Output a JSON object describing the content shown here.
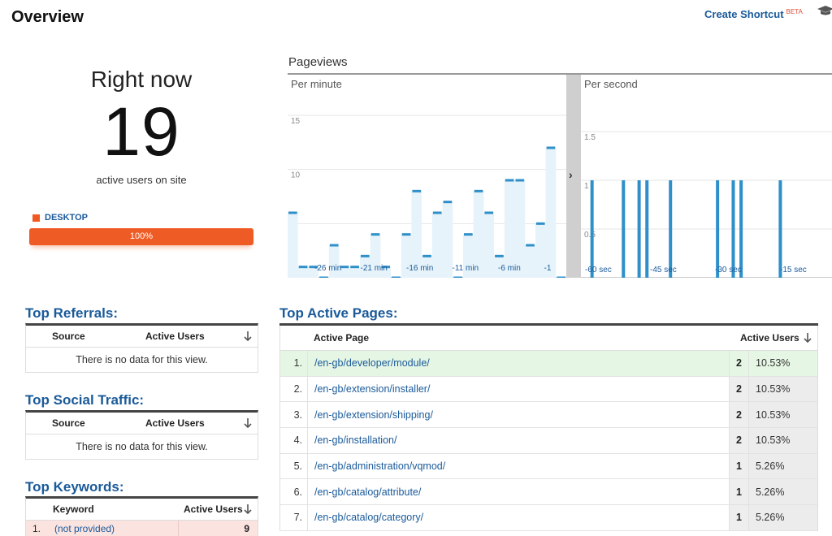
{
  "header": {
    "title": "Overview",
    "shortcut_label": "Create Shortcut",
    "shortcut_badge": "BETA"
  },
  "right_now": {
    "label": "Right now",
    "count": "19",
    "subtitle": "active users on site"
  },
  "device": {
    "label": "DESKTOP",
    "percent_label": "100%",
    "percent": 100,
    "color": "#f05a22"
  },
  "pageviews": {
    "title": "Pageviews",
    "per_minute_label": "Per minute",
    "per_second_label": "Per second",
    "minute_y_ticks": [
      "15",
      "10",
      "5"
    ],
    "minute_x_ticks": [
      "-26 min",
      "-21 min",
      "-16 min",
      "-11 min",
      "-6 min",
      "-1"
    ],
    "second_y_ticks": [
      "1.5",
      "1",
      "0.5"
    ],
    "second_x_ticks": [
      "-60 sec",
      "-45 sec",
      "-30 sec",
      "-15 sec"
    ],
    "minute_values": [
      6,
      1,
      1,
      0,
      3,
      1,
      1,
      2,
      4,
      1,
      0,
      4,
      8,
      2,
      6,
      7,
      0,
      4,
      8,
      6,
      2,
      9,
      9,
      3,
      5,
      12,
      0
    ],
    "second_values": [
      0,
      1,
      0,
      0,
      0,
      1,
      0,
      1,
      1,
      0,
      0,
      1,
      0,
      0,
      0,
      0,
      0,
      1,
      0,
      1,
      1,
      0,
      0,
      0,
      0,
      1,
      0,
      0,
      0,
      0,
      0,
      0
    ]
  },
  "referrals": {
    "title": "Top Referrals:",
    "col_source": "Source",
    "col_users": "Active Users",
    "empty": "There is no data for this view."
  },
  "social": {
    "title": "Top Social Traffic:",
    "col_source": "Source",
    "col_users": "Active Users",
    "empty": "There is no data for this view."
  },
  "keywords": {
    "title": "Top Keywords:",
    "col_keyword": "Keyword",
    "col_users": "Active Users",
    "rows": [
      {
        "num": "1.",
        "keyword": "(not provided)",
        "users": "9"
      }
    ]
  },
  "active_pages": {
    "title": "Top Active Pages:",
    "col_page": "Active Page",
    "col_users": "Active Users",
    "rows": [
      {
        "num": "1.",
        "page": "/en-gb/developer/module/",
        "users": "2",
        "pct": "10.53%"
      },
      {
        "num": "2.",
        "page": "/en-gb/extension/installer/",
        "users": "2",
        "pct": "10.53%"
      },
      {
        "num": "3.",
        "page": "/en-gb/extension/shipping/",
        "users": "2",
        "pct": "10.53%"
      },
      {
        "num": "4.",
        "page": "/en-gb/installation/",
        "users": "2",
        "pct": "10.53%"
      },
      {
        "num": "5.",
        "page": "/en-gb/administration/vqmod/",
        "users": "1",
        "pct": "5.26%"
      },
      {
        "num": "6.",
        "page": "/en-gb/catalog/attribute/",
        "users": "1",
        "pct": "5.26%"
      },
      {
        "num": "7.",
        "page": "/en-gb/catalog/category/",
        "users": "1",
        "pct": "5.26%"
      }
    ]
  }
}
